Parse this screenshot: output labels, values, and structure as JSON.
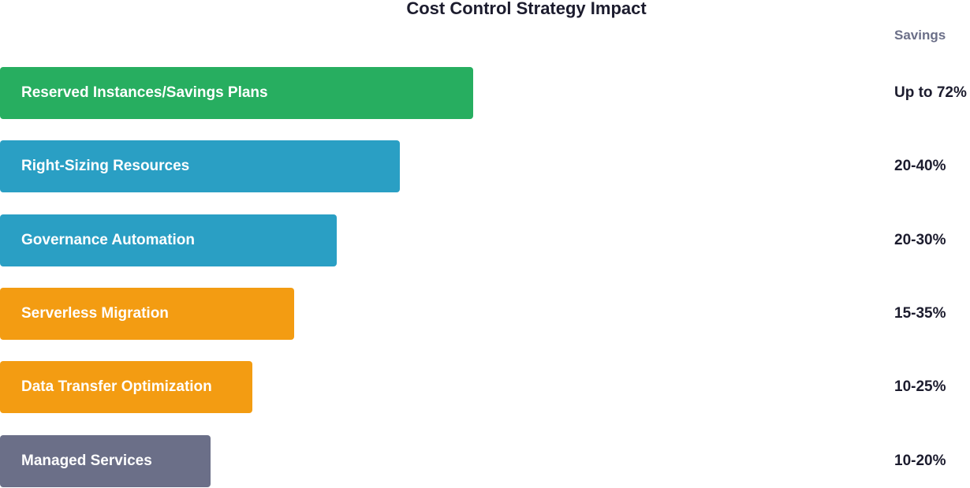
{
  "chart_data": {
    "type": "bar",
    "orientation": "horizontal",
    "title": "Cost Control Strategy Impact",
    "value_column_header": "Savings",
    "categories": [
      "Reserved Instances/Savings Plans",
      "Right-Sizing Resources",
      "Governance Automation",
      "Serverless Migration",
      "Data Transfer Optimization",
      "Managed Services"
    ],
    "savings_labels": [
      "Up to 72%",
      "20-40%",
      "20-30%",
      "15-35%",
      "10-25%",
      "10-20%"
    ],
    "relative_length": [
      1.0,
      0.845,
      0.712,
      0.622,
      0.533,
      0.445
    ],
    "colors": [
      "#27ae60",
      "#2a9fc4",
      "#2a9fc4",
      "#f39c12",
      "#f39c12",
      "#6b6f88"
    ],
    "grid": false,
    "legend": "none"
  }
}
